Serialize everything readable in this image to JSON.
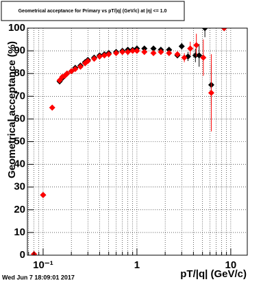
{
  "chart_data": {
    "type": "scatter",
    "title": "Geometrical acceptance for Primary vs pT/|q| (GeV/c) at |η| <= 1.0",
    "x_label": "pT/|q| (GeV/c)",
    "y_label": "Geometrical acceptance (%)",
    "timestamp": "Wed Jun  7 18:09:01 2017",
    "log_x": true,
    "grid": true,
    "xlim": [
      0.068,
      15
    ],
    "ylim": [
      0,
      100
    ],
    "xticks": [
      {
        "value": 0.1,
        "label": "10⁻¹"
      },
      1,
      10
    ],
    "xminorticks": [
      0.07,
      0.08,
      0.09,
      0.2,
      0.3,
      0.4,
      0.5,
      0.6,
      0.7,
      0.8,
      0.9,
      2,
      3,
      4,
      5,
      6,
      7,
      8,
      9
    ],
    "yticks": [
      0,
      10,
      20,
      30,
      40,
      50,
      60,
      70,
      80,
      90,
      100
    ],
    "series": [
      {
        "color": "#000000",
        "x": [
          0.1,
          0.15,
          0.16,
          0.17,
          0.18,
          0.2,
          0.22,
          0.25,
          0.28,
          0.3,
          0.35,
          0.4,
          0.45,
          0.5,
          0.6,
          0.7,
          0.8,
          0.9,
          1.0,
          1.2,
          1.5,
          1.8,
          2.2,
          2.7,
          3.0,
          3.5,
          4.2,
          4.6,
          5.3,
          6.2,
          8.5
        ],
        "values": [
          26.5,
          76.5,
          78,
          79,
          80,
          81,
          82.5,
          83.5,
          85,
          86,
          87,
          88,
          88.5,
          89,
          89.5,
          90,
          90.5,
          90.5,
          91,
          91,
          91,
          90.5,
          90.5,
          88,
          92,
          87.5,
          88,
          88,
          100,
          75,
          100
        ],
        "errors": [
          1,
          0.8,
          0.6,
          0.6,
          0.6,
          0.5,
          0.5,
          0.5,
          0.5,
          0.5,
          0.5,
          0.5,
          0.5,
          0.5,
          0.5,
          0.5,
          0.5,
          0.5,
          0.5,
          0.6,
          0.7,
          0.8,
          1,
          1.2,
          1.5,
          2,
          3,
          5,
          4,
          9,
          0
        ]
      },
      {
        "color": "#ff0000",
        "x": [
          0.08,
          0.1,
          0.125,
          0.15,
          0.16,
          0.17,
          0.18,
          0.2,
          0.22,
          0.25,
          0.28,
          0.3,
          0.35,
          0.4,
          0.45,
          0.5,
          0.6,
          0.7,
          0.8,
          0.9,
          1.0,
          1.2,
          1.5,
          1.8,
          2.2,
          2.7,
          3.2,
          3.7,
          4.3,
          5.1,
          6.2,
          8.5
        ],
        "values": [
          0.5,
          26.5,
          65,
          77,
          78.5,
          79,
          80,
          81,
          82,
          83,
          84.5,
          85.5,
          86.5,
          87.5,
          88,
          88.5,
          89,
          89.5,
          89.5,
          90,
          90,
          89.5,
          89,
          89.5,
          89,
          88.5,
          87,
          91,
          92.5,
          87,
          71.5,
          100
        ],
        "errors": [
          1,
          1,
          1,
          0.8,
          0.6,
          0.6,
          0.6,
          0.5,
          0.5,
          0.5,
          0.5,
          0.5,
          0.5,
          0.5,
          0.5,
          0.5,
          0.5,
          0.5,
          0.5,
          0.5,
          0.5,
          0.6,
          0.7,
          0.8,
          1,
          1.2,
          2,
          3,
          5,
          8,
          17,
          0
        ]
      }
    ]
  }
}
